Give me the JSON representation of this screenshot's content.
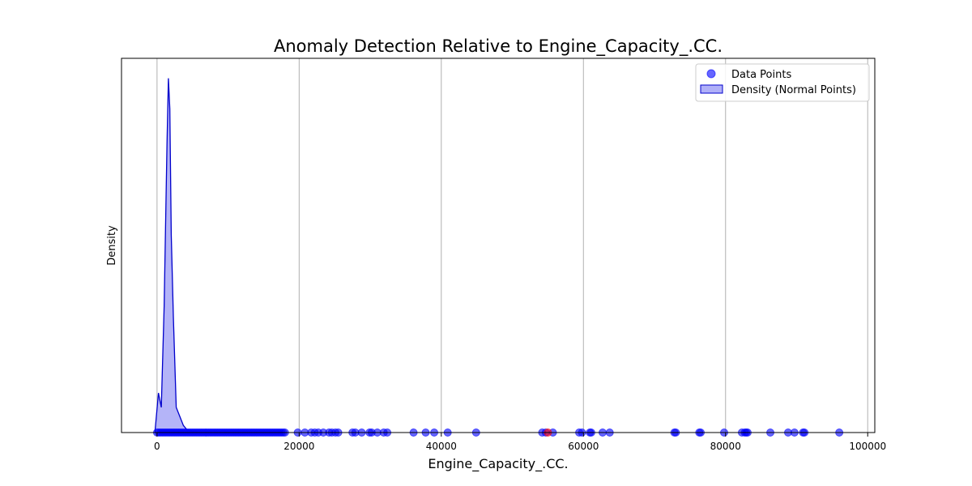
{
  "chart_data": {
    "type": "scatter",
    "title": "Anomaly Detection Relative to Engine_Capacity_.CC.",
    "xlabel": "Engine_Capacity_.CC.",
    "ylabel": "Density",
    "xlim": [
      -5000,
      101000
    ],
    "ylim": [
      0,
      1
    ],
    "xticks": [
      0,
      20000,
      40000,
      60000,
      80000,
      100000
    ],
    "xtick_labels": [
      "0",
      "20000",
      "40000",
      "60000",
      "80000",
      "100000"
    ],
    "grid": "x",
    "legend": {
      "position": "top-right",
      "entries": [
        "Data Points",
        "Density (Normal Points)"
      ]
    },
    "colors": {
      "points": "#0000ff",
      "density_line": "#0000cc",
      "density_fill": "#b0b0f8",
      "anomaly": "#ff0000"
    },
    "points_range": {
      "from": 0,
      "to": 18000,
      "step": 250
    },
    "points": [
      19800,
      20800,
      21700,
      22200,
      22700,
      23400,
      24200,
      24600,
      25100,
      25500,
      27500,
      27900,
      28800,
      29900,
      30200,
      31000,
      31900,
      32400,
      36100,
      37800,
      39000,
      40900,
      44900,
      54200,
      54700,
      55700,
      59400,
      59800,
      60900,
      61100,
      62700,
      63700,
      72800,
      73000,
      76300,
      76500,
      79800,
      82300,
      82700,
      82900,
      83100,
      86300,
      88800,
      89700,
      90900,
      91100,
      96000
    ],
    "anomalies": [
      55000
    ],
    "density": {
      "x": [
        -300,
        200,
        600,
        1000,
        1400,
        1600,
        1800,
        2000,
        2300,
        2700,
        3200,
        3700,
        4200,
        5000,
        6000
      ],
      "y": [
        0.0,
        0.11,
        0.07,
        0.35,
        0.8,
        0.985,
        0.9,
        0.55,
        0.32,
        0.07,
        0.045,
        0.02,
        0.008,
        0.003,
        0.0
      ]
    }
  }
}
